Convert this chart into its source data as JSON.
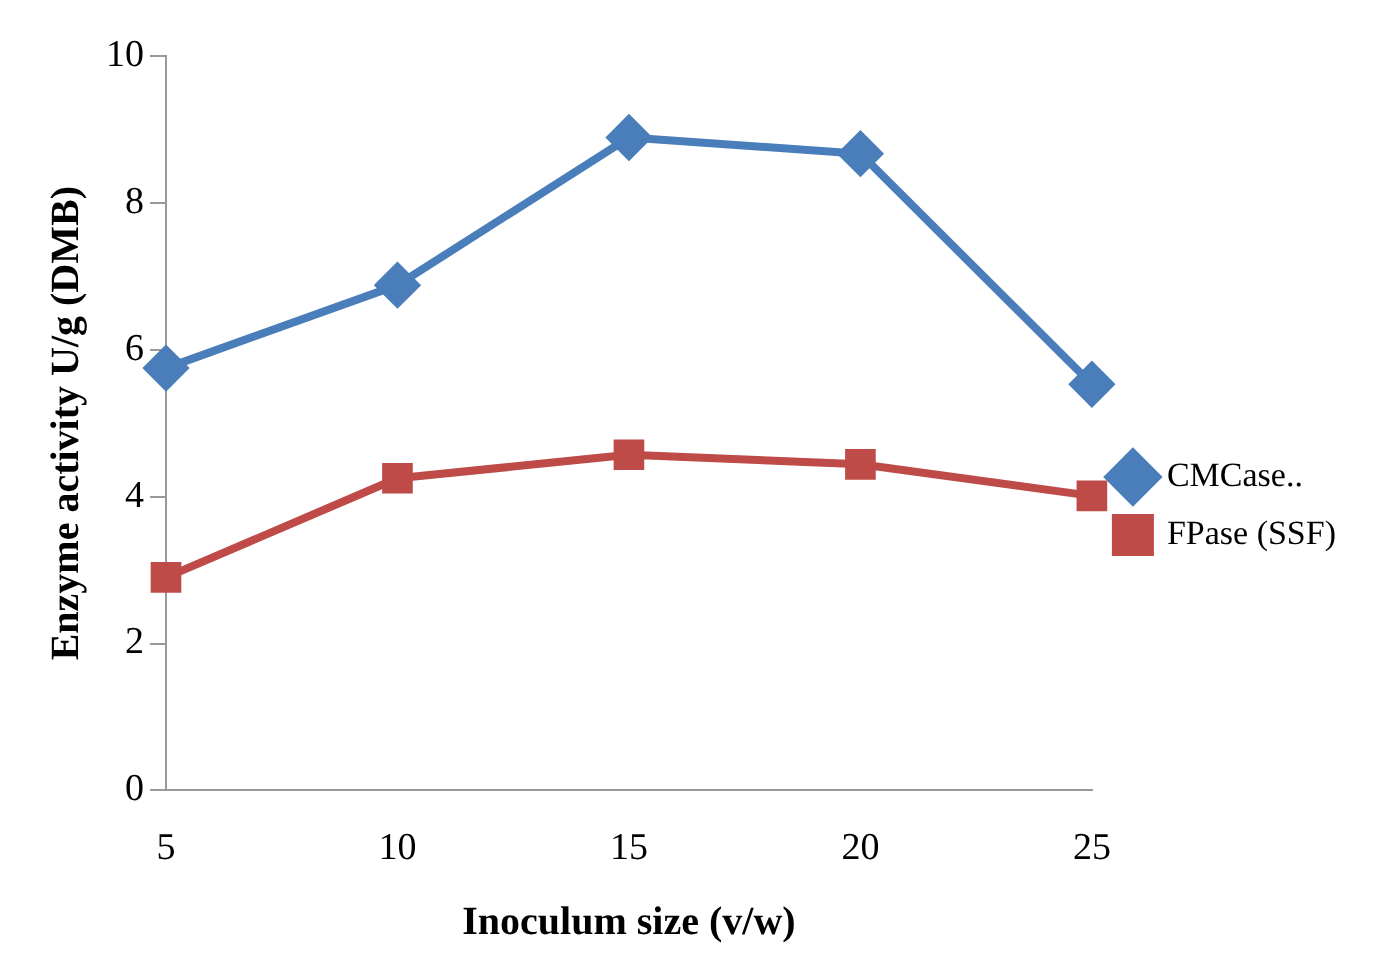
{
  "chart_data": {
    "type": "line",
    "xlabel": "Inoculum size (v/w)",
    "ylabel": "Enzyme activity U/g (DMB)",
    "categories": [
      "5",
      "10",
      "15",
      "20",
      "25"
    ],
    "ylim": [
      0,
      10
    ],
    "yticks": [
      0,
      2,
      4,
      6,
      8,
      10
    ],
    "grid": false,
    "legend": "right",
    "line_style": "solid",
    "series": [
      {
        "name": "CMCase..",
        "color": "#4a7ebb",
        "marker": "diamond",
        "values": [
          5.75,
          6.88,
          8.89,
          8.67,
          5.53
        ]
      },
      {
        "name": "FPase (SSF)",
        "color": "#be4b48",
        "marker": "square",
        "values": [
          2.9,
          4.25,
          4.57,
          4.44,
          4.01
        ]
      }
    ]
  }
}
